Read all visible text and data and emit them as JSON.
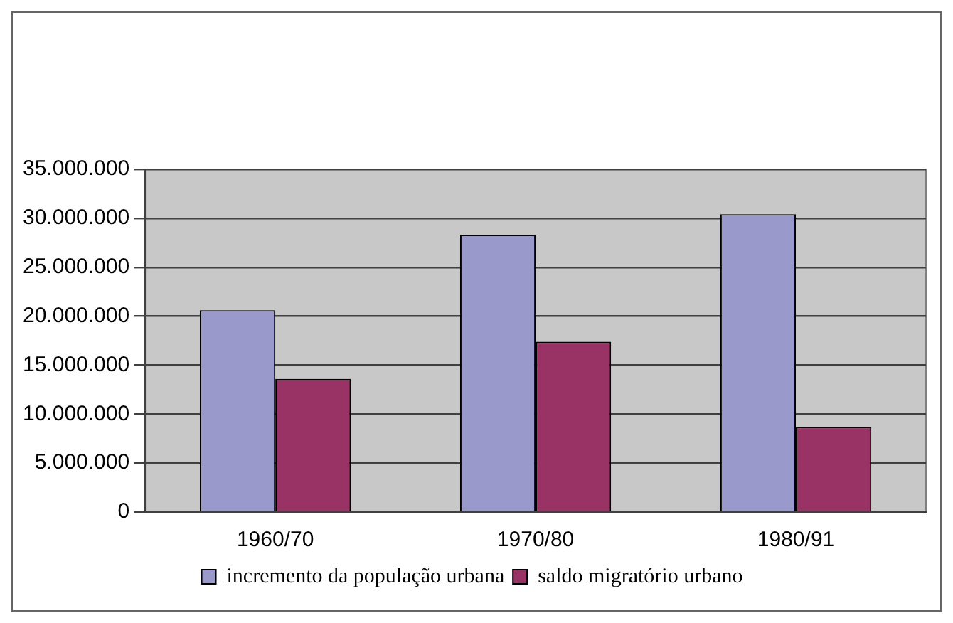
{
  "chart_data": {
    "type": "bar",
    "categories": [
      "1960/70",
      "1970/80",
      "1980/91"
    ],
    "series": [
      {
        "name": "incremento da população urbana",
        "color": "#9999cc",
        "values": [
          20600000,
          28300000,
          30400000
        ]
      },
      {
        "name": "saldo migratório urbano",
        "color": "#993366",
        "values": [
          13600000,
          17400000,
          8700000
        ]
      }
    ],
    "ylim": [
      0,
      35000000
    ],
    "yticks": [
      {
        "value": 0,
        "label": "0"
      },
      {
        "value": 5000000,
        "label": "5.000.000"
      },
      {
        "value": 10000000,
        "label": "10.000.000"
      },
      {
        "value": 15000000,
        "label": "15.000.000"
      },
      {
        "value": 20000000,
        "label": "20.000.000"
      },
      {
        "value": 25000000,
        "label": "25.000.000"
      },
      {
        "value": 30000000,
        "label": "30.000.000"
      },
      {
        "value": 35000000,
        "label": "35.000.000"
      }
    ],
    "grid": "y",
    "legend": "bottom"
  }
}
